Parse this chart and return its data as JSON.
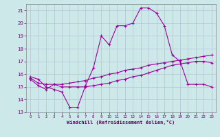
{
  "xlabel": "Windchill (Refroidissement éolien,°C)",
  "ylabel": "",
  "bg_color": "#cce8e8",
  "line_color": "#990099",
  "grid_color": "#aabbcc",
  "xlim": [
    -0.5,
    23.5
  ],
  "ylim": [
    13,
    21.5
  ],
  "yticks": [
    13,
    14,
    15,
    16,
    17,
    18,
    19,
    20,
    21
  ],
  "xticks": [
    0,
    1,
    2,
    3,
    4,
    5,
    6,
    7,
    8,
    9,
    10,
    11,
    12,
    13,
    14,
    15,
    16,
    17,
    18,
    19,
    20,
    21,
    22,
    23
  ],
  "series": [
    {
      "x": [
        0,
        1,
        2,
        3,
        4,
        5,
        6,
        7,
        8,
        9,
        10,
        11,
        12,
        13,
        14,
        15,
        16,
        17,
        18,
        19,
        20,
        21,
        22,
        23
      ],
      "y": [
        15.8,
        15.6,
        15.0,
        14.8,
        14.6,
        13.4,
        13.4,
        15.1,
        16.5,
        19.0,
        18.3,
        19.8,
        19.8,
        20.0,
        21.2,
        21.2,
        20.8,
        19.8,
        17.5,
        17.0,
        15.2,
        15.2,
        15.2,
        15.0
      ]
    },
    {
      "x": [
        0,
        1,
        2,
        3,
        4,
        5,
        6,
        7,
        8,
        9,
        10,
        11,
        12,
        13,
        14,
        15,
        16,
        17,
        18,
        19,
        20,
        21,
        22,
        23
      ],
      "y": [
        15.7,
        15.3,
        15.2,
        15.2,
        15.2,
        15.3,
        15.4,
        15.5,
        15.7,
        15.8,
        16.0,
        16.1,
        16.3,
        16.4,
        16.5,
        16.7,
        16.8,
        16.9,
        17.0,
        17.1,
        17.2,
        17.3,
        17.4,
        17.5
      ]
    },
    {
      "x": [
        0,
        1,
        2,
        3,
        4,
        5,
        6,
        7,
        8,
        9,
        10,
        11,
        12,
        13,
        14,
        15,
        16,
        17,
        18,
        19,
        20,
        21,
        22,
        23
      ],
      "y": [
        15.6,
        15.1,
        14.8,
        15.2,
        15.0,
        15.0,
        15.0,
        15.0,
        15.1,
        15.2,
        15.3,
        15.5,
        15.6,
        15.8,
        15.9,
        16.1,
        16.3,
        16.5,
        16.7,
        16.8,
        16.9,
        17.0,
        17.0,
        16.9
      ]
    }
  ]
}
